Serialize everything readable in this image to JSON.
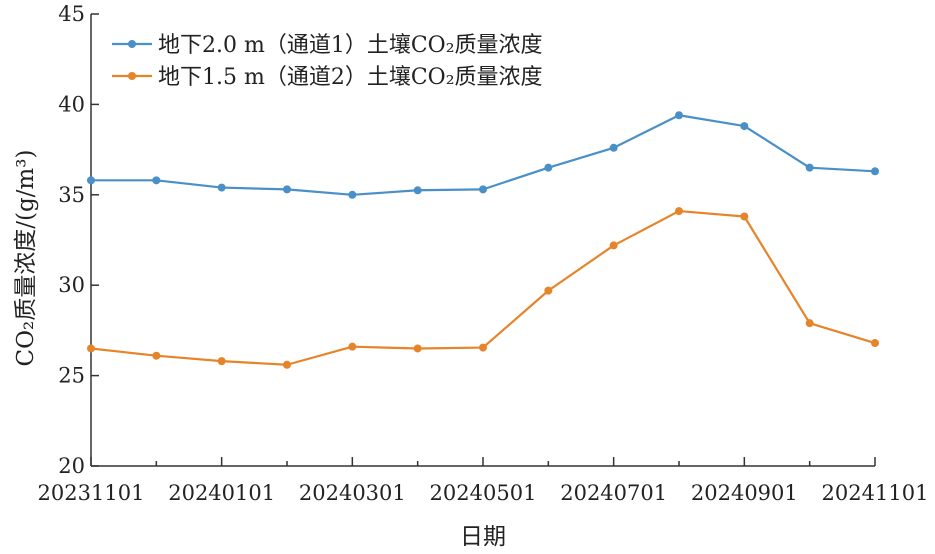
{
  "chart_data": {
    "type": "line",
    "title": "",
    "xlabel": "日期",
    "ylabel": "CO₂质量浓度/(g/m³)",
    "ylim": [
      20,
      45
    ],
    "yticks": [
      20,
      25,
      30,
      35,
      40,
      45
    ],
    "xticks": [
      "20231101",
      "20240101",
      "20240301",
      "20240501",
      "20240701",
      "20240901",
      "20241101"
    ],
    "categories": [
      "20231101",
      "20231201",
      "20240101",
      "20240201",
      "20240301",
      "20240401",
      "20240501",
      "20240601",
      "20240701",
      "20240801",
      "20240901",
      "20241001",
      "20241101"
    ],
    "grid": false,
    "legend_position": "top-left",
    "series": [
      {
        "name": "地下2.0 m（通道1）土壤CO₂质量浓度",
        "color": "#4a90c8",
        "values": [
          35.8,
          35.8,
          35.4,
          35.3,
          35.0,
          35.25,
          35.3,
          36.5,
          37.6,
          39.4,
          38.8,
          36.5,
          36.3
        ]
      },
      {
        "name": "地下1.5 m（通道2）土壤CO₂质量浓度",
        "color": "#e6842a",
        "values": [
          26.5,
          26.1,
          25.8,
          25.6,
          26.6,
          26.5,
          26.55,
          29.7,
          32.2,
          34.1,
          33.8,
          27.9,
          26.8
        ]
      }
    ]
  }
}
